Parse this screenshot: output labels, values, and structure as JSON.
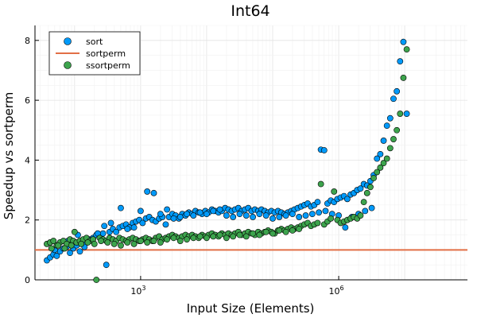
{
  "chart_data": {
    "type": "scatter",
    "title": "Int64",
    "xlabel": "Input Size (Elements)",
    "ylabel": "Speedup vs sortperm",
    "x_scale": "log10",
    "xlim_log10": [
      1.4,
      7.95
    ],
    "ylim": [
      0,
      8.5
    ],
    "grid": true,
    "legend_position": "top-left",
    "x_ticks": [
      {
        "value_log10": 3,
        "base": "10",
        "exp": "3"
      },
      {
        "value_log10": 6,
        "base": "10",
        "exp": "6"
      }
    ],
    "y_ticks": [
      0,
      2,
      4,
      6,
      8
    ],
    "series": [
      {
        "name": "sort",
        "kind": "scatter",
        "color": "#009AFA",
        "points": [
          [
            1.58,
            0.65
          ],
          [
            1.63,
            0.75
          ],
          [
            1.68,
            0.85
          ],
          [
            1.73,
            0.8
          ],
          [
            1.78,
            0.95
          ],
          [
            1.83,
            1.05
          ],
          [
            1.88,
            1.1
          ],
          [
            1.93,
            0.9
          ],
          [
            1.98,
            1.05
          ],
          [
            2.03,
            1.15
          ],
          [
            2.08,
            0.95
          ],
          [
            2.13,
            1.2
          ],
          [
            2.18,
            1.25
          ],
          [
            2.23,
            1.35
          ],
          [
            2.28,
            1.4
          ],
          [
            2.33,
            1.5
          ],
          [
            2.38,
            1.45
          ],
          [
            2.43,
            1.55
          ],
          [
            2.48,
            0.5
          ],
          [
            2.53,
            1.6
          ],
          [
            2.58,
            1.7
          ],
          [
            2.63,
            1.6
          ],
          [
            2.68,
            1.75
          ],
          [
            2.73,
            1.8
          ],
          [
            2.78,
            1.85
          ],
          [
            2.83,
            1.75
          ],
          [
            2.88,
            1.9
          ],
          [
            2.93,
            1.95
          ],
          [
            2.98,
            2.0
          ],
          [
            3.03,
            1.9
          ],
          [
            3.08,
            2.05
          ],
          [
            3.13,
            2.1
          ],
          [
            3.18,
            2.0
          ],
          [
            3.23,
            1.95
          ],
          [
            3.28,
            2.05
          ],
          [
            3.33,
            2.1
          ],
          [
            3.38,
            1.85
          ],
          [
            3.43,
            2.1
          ],
          [
            3.48,
            2.2
          ],
          [
            3.53,
            2.15
          ],
          [
            3.58,
            2.05
          ],
          [
            3.63,
            2.2
          ],
          [
            3.68,
            2.15
          ],
          [
            3.73,
            2.25
          ],
          [
            3.78,
            2.2
          ],
          [
            3.83,
            2.3
          ],
          [
            3.88,
            2.25
          ],
          [
            3.93,
            2.2
          ],
          [
            3.98,
            2.3
          ],
          [
            4.03,
            2.25
          ],
          [
            4.08,
            2.35
          ],
          [
            4.13,
            2.3
          ],
          [
            4.18,
            2.25
          ],
          [
            4.23,
            2.3
          ],
          [
            4.28,
            2.4
          ],
          [
            4.33,
            2.35
          ],
          [
            4.38,
            2.3
          ],
          [
            4.43,
            2.35
          ],
          [
            4.48,
            2.4
          ],
          [
            4.53,
            2.3
          ],
          [
            4.58,
            2.35
          ],
          [
            4.63,
            2.4
          ],
          [
            4.68,
            2.3
          ],
          [
            4.73,
            2.35
          ],
          [
            4.78,
            2.3
          ],
          [
            4.83,
            2.35
          ],
          [
            4.88,
            2.3
          ],
          [
            4.93,
            2.25
          ],
          [
            4.98,
            2.3
          ],
          [
            5.03,
            2.25
          ],
          [
            5.08,
            2.3
          ],
          [
            5.13,
            2.25
          ],
          [
            5.18,
            2.2
          ],
          [
            5.23,
            2.25
          ],
          [
            5.28,
            2.3
          ],
          [
            5.33,
            2.35
          ],
          [
            5.38,
            2.4
          ],
          [
            5.43,
            2.45
          ],
          [
            5.48,
            2.5
          ],
          [
            5.53,
            2.55
          ],
          [
            5.58,
            2.45
          ],
          [
            5.63,
            2.5
          ],
          [
            5.68,
            2.6
          ],
          [
            5.73,
            4.35
          ],
          [
            5.78,
            4.33
          ],
          [
            5.83,
            2.55
          ],
          [
            5.88,
            2.65
          ],
          [
            5.93,
            2.6
          ],
          [
            5.98,
            2.7
          ],
          [
            6.03,
            2.75
          ],
          [
            6.08,
            2.8
          ],
          [
            6.13,
            2.7
          ],
          [
            6.18,
            2.85
          ],
          [
            6.23,
            2.9
          ],
          [
            6.28,
            3.0
          ],
          [
            6.33,
            3.05
          ],
          [
            6.38,
            3.2
          ],
          [
            6.43,
            3.15
          ],
          [
            6.48,
            3.3
          ],
          [
            6.53,
            3.5
          ],
          [
            6.58,
            4.05
          ],
          [
            6.63,
            4.2
          ],
          [
            6.68,
            4.65
          ],
          [
            6.73,
            5.15
          ],
          [
            6.78,
            5.4
          ],
          [
            6.83,
            6.05
          ],
          [
            6.88,
            6.3
          ],
          [
            6.93,
            7.3
          ],
          [
            6.98,
            7.95
          ],
          [
            7.03,
            5.55
          ],
          [
            1.7,
            1.0
          ],
          [
            1.9,
            1.3
          ],
          [
            2.05,
            1.5
          ],
          [
            2.15,
            1.1
          ],
          [
            2.35,
            1.55
          ],
          [
            2.45,
            1.8
          ],
          [
            2.55,
            1.9
          ],
          [
            2.7,
            2.4
          ],
          [
            2.8,
            1.7
          ],
          [
            2.9,
            1.75
          ],
          [
            3.0,
            2.3
          ],
          [
            3.1,
            2.95
          ],
          [
            3.2,
            2.9
          ],
          [
            3.3,
            2.2
          ],
          [
            3.4,
            2.35
          ],
          [
            3.5,
            2.05
          ],
          [
            3.6,
            2.1
          ],
          [
            3.7,
            2.2
          ],
          [
            3.8,
            2.15
          ],
          [
            3.9,
            2.25
          ],
          [
            4.0,
            2.2
          ],
          [
            4.1,
            2.3
          ],
          [
            4.2,
            2.35
          ],
          [
            4.3,
            2.15
          ],
          [
            4.4,
            2.1
          ],
          [
            4.5,
            2.2
          ],
          [
            4.6,
            2.15
          ],
          [
            4.7,
            2.1
          ],
          [
            4.8,
            2.2
          ],
          [
            4.9,
            2.15
          ],
          [
            5.0,
            2.05
          ],
          [
            5.1,
            2.1
          ],
          [
            5.2,
            2.15
          ],
          [
            5.3,
            2.2
          ],
          [
            5.4,
            2.1
          ],
          [
            5.5,
            2.15
          ],
          [
            5.6,
            2.2
          ],
          [
            5.7,
            2.25
          ],
          [
            5.8,
            2.3
          ],
          [
            5.9,
            2.2
          ],
          [
            6.0,
            2.15
          ],
          [
            6.1,
            1.75
          ],
          [
            6.2,
            2.1
          ],
          [
            6.3,
            2.2
          ],
          [
            6.4,
            2.3
          ],
          [
            6.5,
            2.4
          ]
        ]
      },
      {
        "name": "sortperm",
        "kind": "line",
        "color": "#E26F46",
        "y": 1.0
      },
      {
        "name": "ssortperm",
        "kind": "scatter",
        "color": "#3DA44D",
        "points": [
          [
            1.58,
            1.2
          ],
          [
            1.63,
            1.25
          ],
          [
            1.68,
            1.3
          ],
          [
            1.73,
            1.15
          ],
          [
            1.78,
            1.25
          ],
          [
            1.83,
            1.3
          ],
          [
            1.88,
            1.2
          ],
          [
            1.93,
            1.35
          ],
          [
            1.98,
            1.3
          ],
          [
            2.03,
            1.25
          ],
          [
            2.08,
            1.3
          ],
          [
            2.13,
            1.35
          ],
          [
            2.18,
            1.4
          ],
          [
            2.23,
            1.3
          ],
          [
            2.28,
            1.35
          ],
          [
            2.33,
            0.0
          ],
          [
            2.38,
            1.4
          ],
          [
            2.43,
            1.35
          ],
          [
            2.48,
            1.3
          ],
          [
            2.53,
            1.4
          ],
          [
            2.58,
            1.35
          ],
          [
            2.63,
            1.3
          ],
          [
            2.68,
            1.4
          ],
          [
            2.73,
            1.35
          ],
          [
            2.78,
            1.3
          ],
          [
            2.83,
            1.35
          ],
          [
            2.88,
            1.4
          ],
          [
            2.93,
            1.35
          ],
          [
            2.98,
            1.3
          ],
          [
            3.03,
            1.35
          ],
          [
            3.08,
            1.4
          ],
          [
            3.13,
            1.35
          ],
          [
            3.18,
            1.3
          ],
          [
            3.23,
            1.4
          ],
          [
            3.28,
            1.45
          ],
          [
            3.33,
            1.35
          ],
          [
            3.38,
            1.4
          ],
          [
            3.43,
            1.45
          ],
          [
            3.48,
            1.5
          ],
          [
            3.53,
            1.45
          ],
          [
            3.58,
            1.4
          ],
          [
            3.63,
            1.45
          ],
          [
            3.68,
            1.5
          ],
          [
            3.73,
            1.45
          ],
          [
            3.78,
            1.5
          ],
          [
            3.83,
            1.45
          ],
          [
            3.88,
            1.4
          ],
          [
            3.93,
            1.5
          ],
          [
            3.98,
            1.45
          ],
          [
            4.03,
            1.5
          ],
          [
            4.08,
            1.55
          ],
          [
            4.13,
            1.5
          ],
          [
            4.18,
            1.45
          ],
          [
            4.23,
            1.55
          ],
          [
            4.28,
            1.5
          ],
          [
            4.33,
            1.55
          ],
          [
            4.38,
            1.5
          ],
          [
            4.43,
            1.55
          ],
          [
            4.48,
            1.6
          ],
          [
            4.53,
            1.5
          ],
          [
            4.58,
            1.55
          ],
          [
            4.63,
            1.6
          ],
          [
            4.68,
            1.55
          ],
          [
            4.73,
            1.5
          ],
          [
            4.78,
            1.6
          ],
          [
            4.83,
            1.55
          ],
          [
            4.88,
            1.6
          ],
          [
            4.93,
            1.65
          ],
          [
            4.98,
            1.6
          ],
          [
            5.03,
            1.55
          ],
          [
            5.08,
            1.65
          ],
          [
            5.13,
            1.7
          ],
          [
            5.18,
            1.65
          ],
          [
            5.23,
            1.7
          ],
          [
            5.28,
            1.75
          ],
          [
            5.33,
            1.7
          ],
          [
            5.38,
            1.75
          ],
          [
            5.43,
            1.8
          ],
          [
            5.48,
            1.85
          ],
          [
            5.53,
            1.9
          ],
          [
            5.58,
            1.8
          ],
          [
            5.63,
            1.85
          ],
          [
            5.68,
            1.9
          ],
          [
            5.73,
            3.2
          ],
          [
            5.78,
            1.85
          ],
          [
            5.83,
            1.95
          ],
          [
            5.88,
            2.05
          ],
          [
            5.93,
            2.95
          ],
          [
            5.98,
            2.0
          ],
          [
            6.03,
            1.9
          ],
          [
            6.08,
            1.95
          ],
          [
            6.13,
            2.0
          ],
          [
            6.18,
            2.05
          ],
          [
            6.23,
            2.1
          ],
          [
            6.28,
            2.05
          ],
          [
            6.33,
            2.15
          ],
          [
            6.38,
            2.6
          ],
          [
            6.43,
            2.9
          ],
          [
            6.48,
            3.1
          ],
          [
            6.53,
            3.4
          ],
          [
            6.58,
            3.6
          ],
          [
            6.63,
            3.75
          ],
          [
            6.68,
            3.9
          ],
          [
            6.73,
            4.05
          ],
          [
            6.78,
            4.4
          ],
          [
            6.83,
            4.7
          ],
          [
            6.88,
            5.0
          ],
          [
            6.93,
            5.55
          ],
          [
            6.98,
            6.75
          ],
          [
            7.03,
            7.7
          ],
          [
            1.65,
            1.05
          ],
          [
            1.75,
            1.15
          ],
          [
            1.85,
            1.05
          ],
          [
            1.95,
            1.15
          ],
          [
            2.0,
            1.6
          ],
          [
            2.1,
            1.2
          ],
          [
            2.2,
            1.25
          ],
          [
            2.3,
            1.2
          ],
          [
            2.4,
            1.3
          ],
          [
            2.5,
            1.25
          ],
          [
            2.6,
            1.2
          ],
          [
            2.7,
            1.15
          ],
          [
            2.8,
            1.25
          ],
          [
            2.9,
            1.2
          ],
          [
            3.0,
            1.3
          ],
          [
            3.1,
            1.25
          ],
          [
            3.2,
            1.3
          ],
          [
            3.3,
            1.25
          ],
          [
            3.4,
            1.35
          ],
          [
            3.5,
            1.4
          ],
          [
            3.6,
            1.3
          ],
          [
            3.7,
            1.35
          ],
          [
            3.8,
            1.4
          ],
          [
            3.9,
            1.45
          ],
          [
            4.0,
            1.4
          ],
          [
            4.1,
            1.45
          ],
          [
            4.2,
            1.5
          ],
          [
            4.3,
            1.4
          ],
          [
            4.4,
            1.45
          ],
          [
            4.5,
            1.5
          ],
          [
            4.6,
            1.45
          ],
          [
            4.7,
            1.55
          ],
          [
            4.8,
            1.5
          ],
          [
            4.9,
            1.6
          ],
          [
            5.0,
            1.55
          ],
          [
            5.1,
            1.65
          ],
          [
            5.2,
            1.6
          ],
          [
            5.3,
            1.65
          ],
          [
            5.4,
            1.7
          ]
        ]
      }
    ]
  }
}
